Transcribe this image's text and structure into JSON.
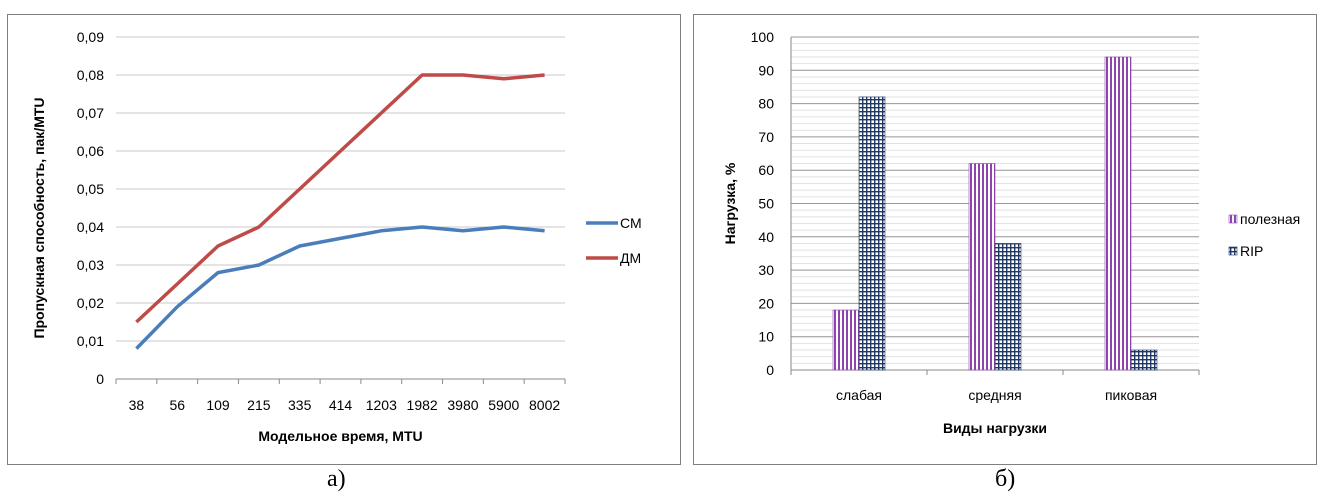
{
  "captions": {
    "a": "а)",
    "b": "б)"
  },
  "chart_data": [
    {
      "type": "line",
      "title": "",
      "xlabel": "Модельное время, MTU",
      "ylabel": "Пропускная способность, пак/MTU",
      "categories": [
        "38",
        "56",
        "109",
        "215",
        "335",
        "414",
        "1203",
        "1982",
        "3980",
        "5900",
        "8002"
      ],
      "ylim": [
        0,
        0.09
      ],
      "yticks": [
        "0",
        "0,01",
        "0,02",
        "0,03",
        "0,04",
        "0,05",
        "0,06",
        "0,07",
        "0,08",
        "0,09"
      ],
      "grid": true,
      "legend_position": "right",
      "series": [
        {
          "name": "СМ",
          "color": "#4a7ebb",
          "values": [
            0.008,
            0.019,
            0.028,
            0.03,
            0.035,
            0.037,
            0.039,
            0.04,
            0.039,
            0.04,
            0.039
          ]
        },
        {
          "name": "ДМ",
          "color": "#be4b48",
          "values": [
            0.015,
            0.025,
            0.035,
            0.04,
            0.05,
            0.06,
            0.07,
            0.08,
            0.08,
            0.079,
            0.08
          ]
        }
      ]
    },
    {
      "type": "bar",
      "title": "",
      "xlabel": "Виды нагрузки",
      "ylabel": "Нагрузка, %",
      "categories": [
        "слабая",
        "средняя",
        "пиковая"
      ],
      "ylim": [
        0,
        100
      ],
      "yticks": [
        "0",
        "10",
        "20",
        "30",
        "40",
        "50",
        "60",
        "70",
        "80",
        "90",
        "100"
      ],
      "grid": true,
      "legend_position": "right",
      "series": [
        {
          "name": "полезная",
          "color": "#8e44ad",
          "pattern": "vertical-stripes",
          "values": [
            18,
            62,
            94
          ]
        },
        {
          "name": "RIP",
          "color": "#1f3864",
          "pattern": "grid",
          "values": [
            82,
            38,
            6
          ]
        }
      ]
    }
  ]
}
